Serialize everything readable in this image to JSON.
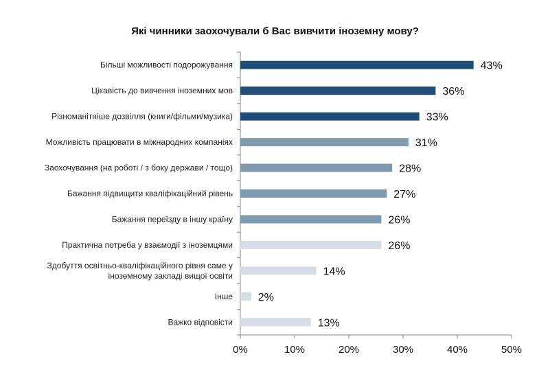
{
  "chart_data": {
    "type": "bar",
    "orientation": "horizontal",
    "title": "Які чинники заохочували б Вас вивчити іноземну мову?",
    "xlabel": "",
    "ylabel": "",
    "xlim": [
      0,
      50
    ],
    "x_ticks": [
      "0%",
      "10%",
      "20%",
      "30%",
      "40%",
      "50%"
    ],
    "grid": false,
    "legend": "none",
    "categories": [
      [
        "Більші можливості подорожування"
      ],
      [
        "Цікавість до вивчення іноземних мов"
      ],
      [
        "Різноманітніше дозвілля (книги/фільми/музика)"
      ],
      [
        "Можливість працювати в міжнародних компаніях"
      ],
      [
        "Заохочування (на роботі / з боку держави / тощо)"
      ],
      [
        "Бажання підвищити кваліфікаційний рівень"
      ],
      [
        "Бажання переїзду в іншу країну"
      ],
      [
        "Практична потреба у взаємодії з іноземцями"
      ],
      [
        "Здобуття освітньо-кваліфікаційного рівня саме у",
        "іноземному закладі вищої освіти"
      ],
      [
        "Інше"
      ],
      [
        "Важко відповісти"
      ]
    ],
    "values": [
      43,
      36,
      33,
      31,
      28,
      27,
      26,
      26,
      14,
      2,
      13
    ],
    "value_labels": [
      "43%",
      "36%",
      "33%",
      "31%",
      "28%",
      "27%",
      "26%",
      "26%",
      "14%",
      "2%",
      "13%"
    ],
    "bar_colors": [
      "#1f4e79",
      "#1f4e79",
      "#1f4e79",
      "#7f9bb0",
      "#7f9bb0",
      "#7f9bb0",
      "#7f9bb0",
      "#d4dde5",
      "#d4dde5",
      "#d4dde5",
      "#d4dde5"
    ],
    "axis_color": "#808080"
  }
}
